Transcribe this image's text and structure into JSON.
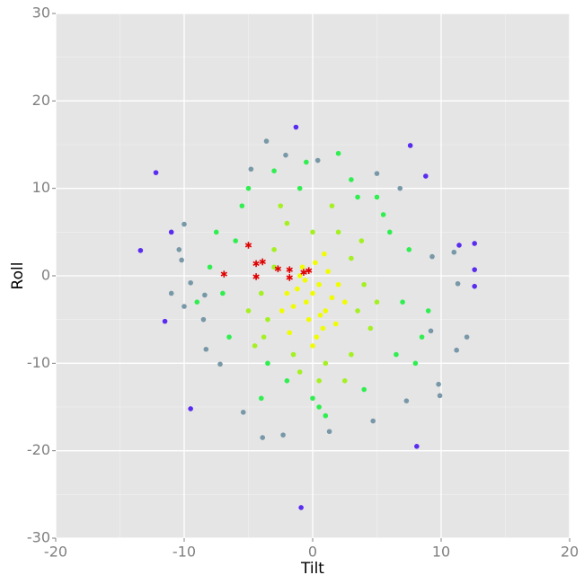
{
  "chart_data": {
    "type": "scatter",
    "x_label": "Tilt",
    "y_label": "Roll",
    "xlim": [
      -20,
      20
    ],
    "ylim": [
      -30,
      30
    ],
    "xticks": [
      -20,
      -10,
      0,
      10,
      20
    ],
    "yticks": [
      -30,
      -20,
      -10,
      0,
      10,
      20,
      30
    ],
    "grid": true,
    "minor_grid": true,
    "series": [
      {
        "color": "#5a2cf0",
        "marker": "circle",
        "x": [
          -12.2,
          -1.3,
          7.6,
          -13.4,
          12.6,
          12.6,
          12.6,
          11.4,
          8.1,
          -0.9,
          -9.5,
          8.8,
          -11.5,
          -11
        ],
        "values": [
          11.8,
          17,
          14.9,
          2.9,
          3.7,
          0.7,
          -1.2,
          3.5,
          -19.5,
          -26.5,
          -15.2,
          11.4,
          -5.2,
          5
        ]
      },
      {
        "color": "#7898a8",
        "marker": "circle",
        "x": [
          -3.6,
          -4.8,
          -2.1,
          0.4,
          5,
          -10,
          -10.4,
          -10.2,
          -11,
          -10,
          -8.5,
          -8.3,
          -7.2,
          -5.4,
          -3.9,
          -2.3,
          1.3,
          4.7,
          9.8,
          9.9,
          7.3,
          12,
          11.2,
          9.2,
          11,
          9.3,
          11.3,
          6.8,
          -8.4,
          -9.5
        ],
        "values": [
          15.4,
          12.2,
          13.8,
          13.2,
          11.7,
          5.9,
          3,
          1.8,
          -2,
          -3.5,
          -5,
          -8.4,
          -10.1,
          -15.6,
          -18.5,
          -18.2,
          -17.8,
          -16.6,
          -12.4,
          -13.7,
          -14.3,
          -7,
          -8.5,
          -6.3,
          2.7,
          2.2,
          -0.9,
          10,
          -2.2,
          -0.8
        ]
      },
      {
        "color": "#30ee50",
        "marker": "circle",
        "x": [
          6,
          -6,
          7,
          -7,
          5,
          -5,
          8,
          -8,
          3,
          -3,
          0,
          1,
          -1,
          6.5,
          -6.5,
          4,
          -4,
          7.5,
          -7.5,
          2,
          -2,
          9,
          -9,
          5.5,
          -5.5,
          0.5,
          -0.5,
          3.5,
          -3.5,
          8.5
        ],
        "values": [
          5,
          4,
          -3,
          -2,
          9,
          10,
          -10,
          1,
          11,
          12,
          -14,
          -16,
          10,
          -9,
          -7,
          -13,
          -14,
          3,
          5,
          14,
          -12,
          -4,
          -3,
          7,
          8,
          -15,
          13,
          9,
          -10,
          -7
        ]
      },
      {
        "color": "#a4f020",
        "marker": "circle",
        "x": [
          3,
          -3,
          3.5,
          -3.5,
          2,
          -2,
          4,
          -4,
          1,
          -1,
          4.5,
          -4.5,
          3,
          -3,
          0,
          2.5,
          -2.5,
          5,
          -5,
          1.5,
          -1.5,
          3.8,
          -3.8,
          0.5
        ],
        "values": [
          2,
          3,
          -4,
          -5,
          5,
          6,
          -1,
          -2,
          -10,
          -11,
          -6,
          -8,
          -9,
          1,
          5,
          -12,
          8,
          -3,
          -4,
          8,
          -9,
          4,
          -7,
          -12
        ]
      },
      {
        "color": "#f0fc00",
        "marker": "circle",
        "x": [
          0,
          0.5,
          -0.5,
          1,
          -1,
          0.2,
          -0.3,
          1.5,
          -1.5,
          0.8,
          -0.8,
          2,
          -2,
          0.3,
          1.2,
          -1.2,
          0.6,
          -0.6,
          2.5,
          -2.4,
          1.8,
          -1.8,
          0,
          0.9
        ],
        "values": [
          -2,
          -1,
          -3,
          -4,
          0,
          1.5,
          -5,
          -2.5,
          -3.5,
          -6,
          1,
          -1,
          -2,
          -7,
          0.5,
          -1.5,
          -4.5,
          -0.5,
          -3,
          -4,
          -5.5,
          -6.5,
          -8,
          2.5
        ]
      },
      {
        "color": "#e00000",
        "marker": "star",
        "x": [
          -6.9,
          -5,
          -4.4,
          -3.9,
          -4.4,
          -2.7,
          -1.8,
          -1.8,
          -0.7,
          -0.3
        ],
        "values": [
          0.2,
          3.5,
          1.4,
          1.6,
          -0.1,
          0.8,
          0.7,
          -0.2,
          0.4,
          0.6
        ]
      }
    ]
  }
}
